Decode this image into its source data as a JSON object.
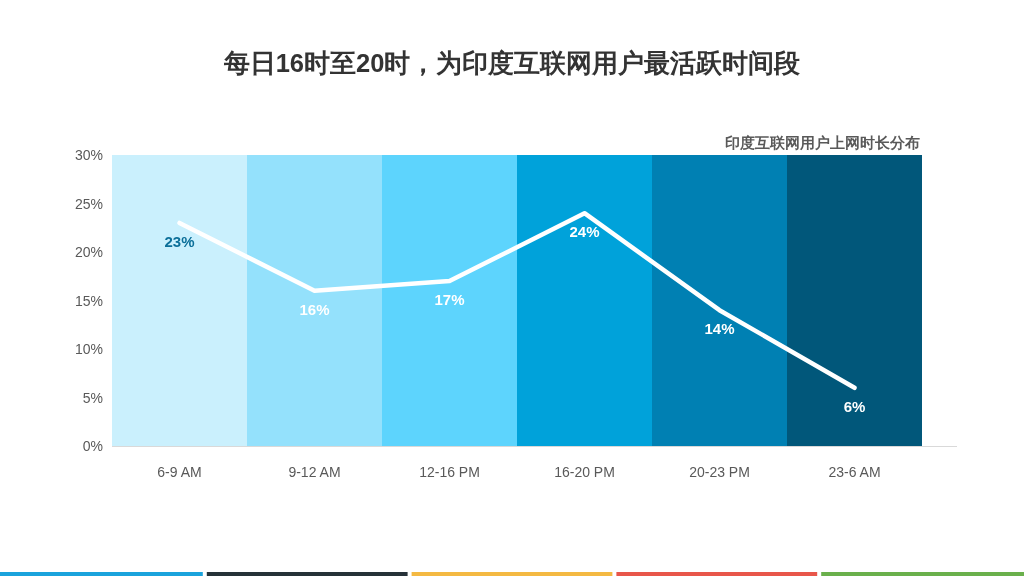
{
  "chart_data": {
    "type": "line",
    "title": "每日16时至20时，为印度互联网用户最活跃时间段",
    "subtitle": "印度互联网用户上网时长分布",
    "categories": [
      "6-9 AM",
      "9-12 AM",
      "12-16 PM",
      "16-20 PM",
      "20-23 PM",
      "23-6 AM"
    ],
    "series": [
      {
        "type": "bar",
        "colors": [
          "#caf0fd",
          "#94e1fc",
          "#5dd4fd",
          "#00a2da",
          "#0080b3",
          "#01577a"
        ],
        "values": [
          30,
          30,
          30,
          30,
          30,
          30
        ]
      },
      {
        "color": "#ffffff",
        "values": [
          23,
          16,
          17,
          24,
          14,
          6
        ],
        "value_labels": [
          "23%",
          "16%",
          "17%",
          "24%",
          "14%",
          "6%"
        ]
      }
    ],
    "ylim": [
      0,
      30
    ],
    "yticks": [
      {
        "value": 0,
        "label": "0%"
      },
      {
        "value": 5,
        "label": "5%"
      },
      {
        "value": 10,
        "label": "10%"
      },
      {
        "value": 15,
        "label": "15%"
      },
      {
        "value": 20,
        "label": "20%"
      },
      {
        "value": 25,
        "label": "25%"
      },
      {
        "value": 30,
        "label": "30%"
      }
    ]
  }
}
